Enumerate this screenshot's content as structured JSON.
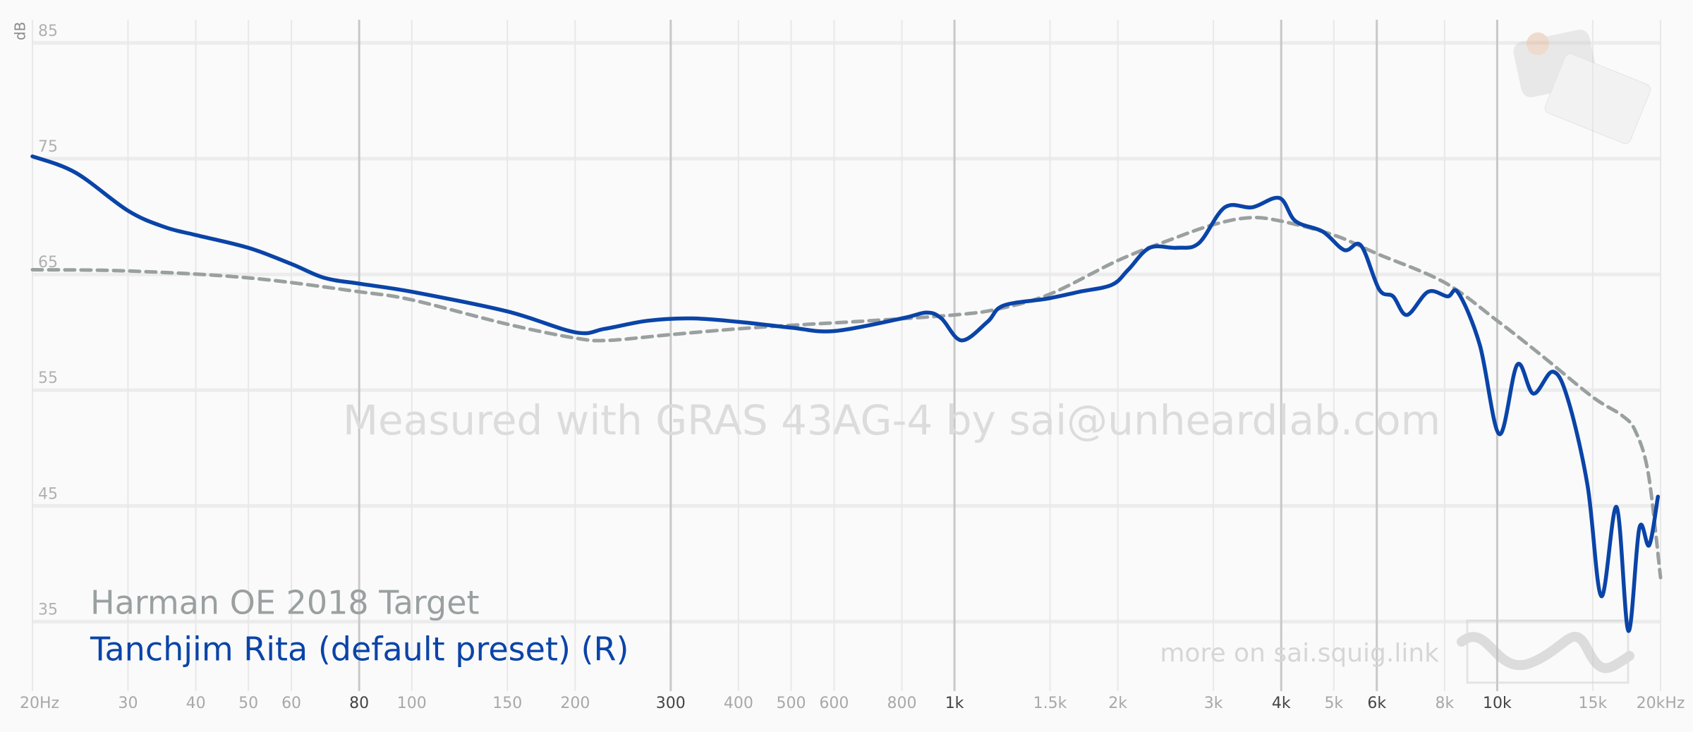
{
  "chart_data": {
    "type": "line",
    "y_label": "dB",
    "watermark": "Measured with GRAS 43AG-4 by sai@unheardlab.com",
    "footer_note": "more on sai.squig.link",
    "log_x": true,
    "xlim": [
      20,
      20000
    ],
    "ylim": [
      29,
      87
    ],
    "yticks": [
      35,
      45,
      55,
      65,
      75,
      85
    ],
    "xticks": [
      {
        "value": 20,
        "label": "20Hz"
      },
      30,
      40,
      50,
      60,
      80,
      100,
      150,
      200,
      300,
      400,
      500,
      600,
      800,
      {
        "value": 1000,
        "label": "1k"
      },
      {
        "value": 1500,
        "label": "1.5k"
      },
      {
        "value": 2000,
        "label": "2k"
      },
      {
        "value": 3000,
        "label": "3k"
      },
      {
        "value": 4000,
        "label": "4k"
      },
      {
        "value": 5000,
        "label": "5k"
      },
      {
        "value": 6000,
        "label": "6k"
      },
      {
        "value": 8000,
        "label": "8k"
      },
      {
        "value": 10000,
        "label": "10k"
      },
      {
        "value": 15000,
        "label": "15k"
      },
      {
        "value": 20000,
        "label": "20kHz"
      }
    ],
    "xticks_major": [
      80,
      300,
      1000,
      4000,
      6000,
      10000
    ],
    "grid": true,
    "legend": "bottom-left",
    "series": [
      {
        "name": "Harman OE 2018 Target",
        "color": "#9aa0a0",
        "dash": true,
        "x": [
          20,
          30,
          50,
          80,
          100,
          150,
          200,
          230,
          300,
          400,
          500,
          700,
          1000,
          1200,
          1500,
          2000,
          2500,
          3000,
          3500,
          4000,
          5000,
          6000,
          8000,
          10000,
          12000,
          15000,
          17000,
          18000,
          19000,
          20000
        ],
        "values": [
          65.4,
          65.3,
          64.7,
          63.5,
          62.8,
          60.7,
          59.5,
          59.3,
          59.8,
          60.3,
          60.6,
          61.0,
          61.5,
          62.0,
          63.3,
          66.2,
          68.0,
          69.3,
          69.9,
          69.6,
          68.4,
          66.8,
          64.3,
          61.0,
          58.1,
          54.4,
          52.8,
          51.4,
          47.7,
          38.8
        ]
      },
      {
        "name": "Tanchjim Rita (default preset) (R)",
        "color": "#0a44a8",
        "dash": false,
        "x": [
          20,
          24,
          30,
          35,
          40,
          50,
          60,
          69,
          80,
          100,
          150,
          200,
          227,
          272,
          328,
          400,
          500,
          600,
          800,
          888,
          946,
          1030,
          1150,
          1230,
          1480,
          1700,
          1950,
          2090,
          2290,
          2570,
          2820,
          3150,
          3540,
          3970,
          4250,
          4770,
          5230,
          5610,
          6060,
          6430,
          6820,
          7460,
          8100,
          8480,
          9290,
          10090,
          10890,
          11660,
          12660,
          13500,
          14670,
          15560,
          16600,
          17450,
          18280,
          19060,
          19780
        ],
        "values": [
          75.2,
          73.8,
          70.5,
          69.1,
          68.4,
          67.3,
          65.9,
          64.7,
          64.2,
          63.5,
          61.8,
          60.0,
          60.3,
          61.0,
          61.2,
          60.9,
          60.4,
          60.1,
          61.2,
          61.7,
          61.2,
          59.3,
          60.9,
          62.3,
          62.9,
          63.5,
          64.1,
          65.4,
          67.3,
          67.3,
          67.7,
          70.8,
          70.8,
          71.6,
          69.6,
          68.7,
          67.1,
          67.5,
          63.7,
          63.1,
          61.5,
          63.5,
          63.1,
          63.4,
          58.9,
          51.2,
          57.2,
          54.7,
          56.6,
          54.2,
          46.8,
          37.2,
          44.9,
          34.2,
          43.1,
          41.6,
          45.8
        ]
      }
    ]
  }
}
